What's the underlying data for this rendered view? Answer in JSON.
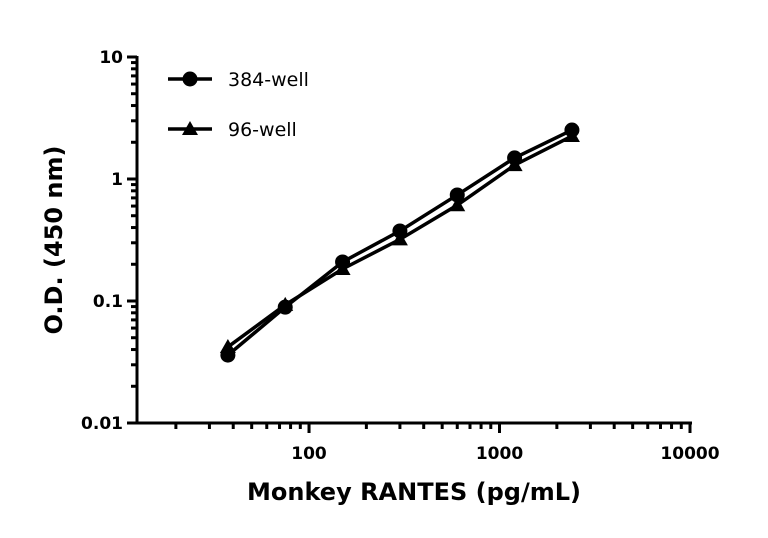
{
  "chart_data": {
    "type": "line",
    "title": "",
    "xlabel": "Monkey RANTES (pg/mL)",
    "ylabel": "O.D. (450 nm)",
    "xscale": "log",
    "yscale": "log",
    "xlim": [
      12.5,
      10000
    ],
    "ylim": [
      0.01,
      10
    ],
    "xticks": [
      100,
      1000,
      10000
    ],
    "xtick_labels": [
      "100",
      "1000",
      "10000"
    ],
    "yticks": [
      0.01,
      0.1,
      1,
      10
    ],
    "ytick_labels": [
      "0.01",
      "0.1",
      "1",
      "10"
    ],
    "grid": false,
    "legend_position": "top-left",
    "x": [
      37.5,
      75,
      150,
      300,
      600,
      1200,
      2400
    ],
    "series": [
      {
        "name": "384-well",
        "marker": "circle",
        "color": "#000000",
        "values": [
          0.036,
          0.089,
          0.209,
          0.375,
          0.74,
          1.49,
          2.52
        ]
      },
      {
        "name": "96-well",
        "marker": "triangle",
        "color": "#000000",
        "values": [
          0.042,
          0.093,
          0.183,
          0.32,
          0.61,
          1.3,
          2.25
        ]
      }
    ]
  }
}
